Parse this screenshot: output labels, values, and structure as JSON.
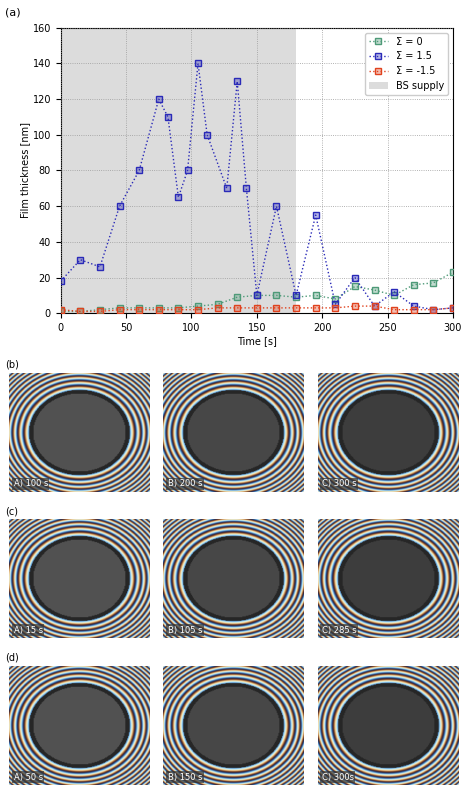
{
  "chart_data": {
    "type": "line",
    "title": "(a)",
    "x_label": "Time [s]",
    "y_label": "Film thickness [nm]",
    "xlim": [
      0,
      300
    ],
    "xticks": [
      0,
      50,
      100,
      150,
      200,
      250,
      300
    ],
    "ylim": [
      0,
      160
    ],
    "yticks": [
      0,
      20,
      40,
      60,
      80,
      100,
      120,
      140,
      160
    ],
    "grid": true,
    "legend": "upper right",
    "marker": "s",
    "line_style": "dotted",
    "series": [
      {
        "name": "Σ = 0",
        "color": "#4e9a78",
        "x": [
          0,
          15,
          30,
          45,
          60,
          75,
          90,
          105,
          120,
          135,
          150,
          165,
          180,
          195,
          210,
          225,
          240,
          255,
          270,
          285,
          300
        ],
        "values": [
          1,
          1,
          2,
          3,
          3,
          3,
          3,
          4,
          5,
          9,
          10,
          10,
          9,
          10,
          8,
          15,
          13,
          10,
          16,
          17,
          23
        ]
      },
      {
        "name": "Σ = 1.5",
        "color": "#2a2ab8",
        "x": [
          0,
          15,
          30,
          45,
          60,
          75,
          82,
          90,
          97,
          105,
          112,
          127,
          135,
          142,
          150,
          165,
          180,
          195,
          210,
          225,
          240,
          255,
          270,
          285,
          300
        ],
        "values": [
          18,
          30,
          26,
          60,
          80,
          120,
          110,
          65,
          80,
          140,
          100,
          70,
          130,
          70,
          10,
          60,
          10,
          55,
          5,
          20,
          4,
          12,
          4,
          2,
          3
        ]
      },
      {
        "name": "Σ = -1.5",
        "color": "#e0421e",
        "x": [
          0,
          15,
          30,
          45,
          60,
          75,
          90,
          105,
          120,
          135,
          150,
          165,
          180,
          195,
          210,
          225,
          240,
          255,
          270,
          285,
          300
        ],
        "values": [
          2,
          1,
          1,
          2,
          2,
          2,
          2,
          2,
          3,
          3,
          3,
          3,
          3,
          3,
          3,
          4,
          4,
          2,
          2,
          2,
          3
        ]
      }
    ],
    "spans": [
      {
        "name": "BS supply",
        "x": [
          0,
          180
        ],
        "color": "#dcdcdc"
      }
    ]
  },
  "image_panels": [
    {
      "label": "(b)",
      "frames": [
        "A) 100 s",
        "B) 200 s",
        "C) 300 s"
      ]
    },
    {
      "label": "(c)",
      "frames": [
        "A) 15 s",
        "B) 105 s",
        "C) 285 s"
      ]
    },
    {
      "label": "(d)",
      "frames": [
        "A) 50 s",
        "B) 150 s",
        "C) 300s"
      ]
    }
  ]
}
